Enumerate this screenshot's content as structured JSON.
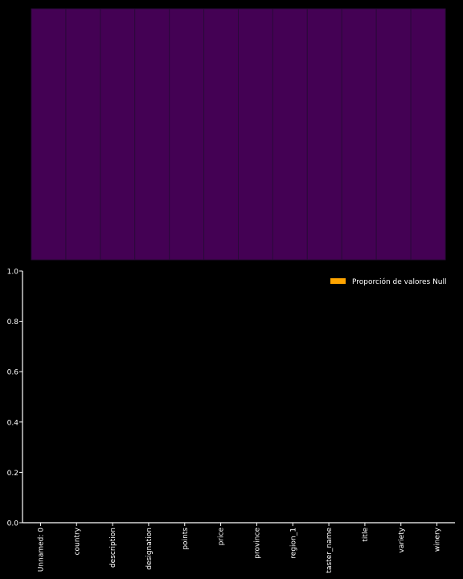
{
  "colors": {
    "background": "#000000",
    "heatmap_fill": "#440154",
    "heatmap_cell_border": "#2a0a3a",
    "bar": "#ffa500",
    "axis": "#ffffff",
    "text": "#ffffff"
  },
  "chart_data": [
    {
      "type": "heatmap",
      "columns": [
        "Unnamed: 0",
        "country",
        "description",
        "designation",
        "points",
        "price",
        "province",
        "region_1",
        "taster_name",
        "title",
        "variety",
        "winery"
      ],
      "null_flags": [
        0,
        0,
        0,
        0,
        0,
        0,
        0,
        0,
        0,
        0,
        0,
        0
      ],
      "grid": false
    },
    {
      "type": "bar",
      "categories": [
        "Unnamed: 0",
        "country",
        "description",
        "designation",
        "points",
        "price",
        "province",
        "region_1",
        "taster_name",
        "title",
        "variety",
        "winery"
      ],
      "series": [
        {
          "name": "Proporción de valores Null",
          "values": [
            0,
            0,
            0,
            0,
            0,
            0,
            0,
            0,
            0,
            0,
            0,
            0
          ]
        }
      ],
      "ylim": [
        0,
        1.0
      ],
      "yticks": [
        "0.0",
        "0.2",
        "0.4",
        "0.6",
        "0.8",
        "1.0"
      ],
      "legend_position": "top-right",
      "grid": false
    }
  ]
}
